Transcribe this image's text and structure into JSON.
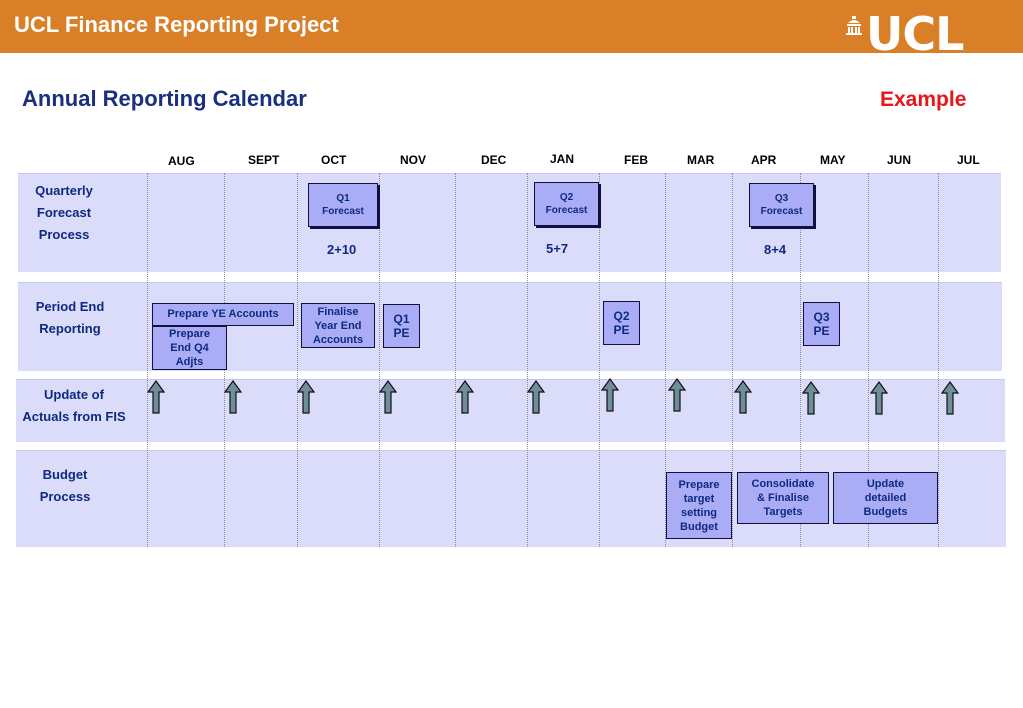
{
  "header": {
    "title": "UCL Finance Reporting Project",
    "logo_text": "UCL"
  },
  "page": {
    "title": "Annual Reporting Calendar",
    "tag": "Example"
  },
  "months": [
    "AUG",
    "SEPT",
    "OCT",
    "NOV",
    "DEC",
    "JAN",
    "FEB",
    "MAR",
    "APR",
    "MAY",
    "JUN",
    "JUL"
  ],
  "rows": {
    "quarterly": {
      "label_lines": [
        "Quarterly",
        "Forecast",
        "Process"
      ],
      "boxes": [
        "Q1\nForecast",
        "Q2\nForecast",
        "Q3\nForecast"
      ],
      "splits": [
        "2+10",
        "5+7",
        "8+4"
      ]
    },
    "period_end": {
      "label_lines": [
        "Period End",
        "Reporting"
      ],
      "boxes": [
        "Prepare YE Accounts",
        "Prepare\nEnd Q4\nAdjts",
        "Finalise\nYear End\nAccounts",
        "Q1\nPE",
        "Q2\nPE",
        "Q3\nPE"
      ]
    },
    "actuals": {
      "label_lines": [
        "Update of",
        "Actuals from FIS"
      ]
    },
    "budget": {
      "label_lines": [
        "Budget",
        "Process"
      ],
      "boxes": [
        "Prepare\ntarget\nsetting\nBudget",
        "Consolidate\n& Finalise\nTargets",
        "Update\ndetailed\nBudgets"
      ]
    }
  },
  "colors": {
    "header_bg": "#d87f27",
    "title_blue": "#1a2f7f",
    "example_red": "#e8151c",
    "band_bg": "#dbdcfa",
    "box_bg": "#aaadf6",
    "arrow": "#6f8e9a"
  },
  "icons": {
    "logo": "portico-icon",
    "update_marker": "up-arrow-icon"
  }
}
